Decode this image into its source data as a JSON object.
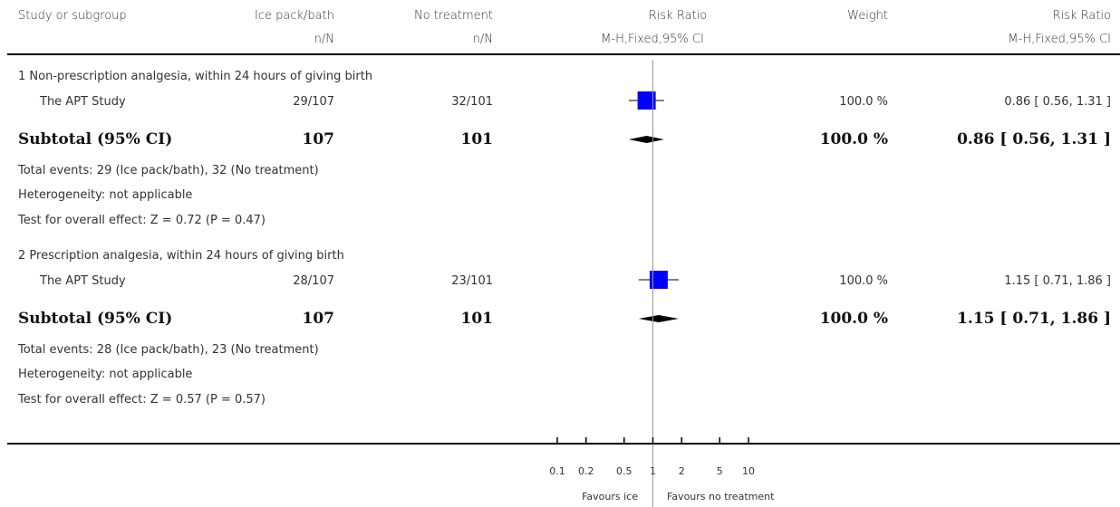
{
  "header": {
    "col_study": "Study or subgroup",
    "col_ice": "Ice pack/bath",
    "col_none": "No treatment",
    "col_rr": "Risk Ratio",
    "col_weight": "Weight",
    "col_rr_right": "Risk Ratio",
    "sub_ice": "n/N",
    "sub_none": "n/N",
    "sub_rr": "M-H,Fixed,95% CI",
    "sub_rr_right": "M-H,Fixed,95% CI"
  },
  "chart_data": {
    "type": "forest",
    "scale": "log",
    "xlim": [
      0.1,
      10
    ],
    "x_ticks": [
      0.1,
      0.2,
      0.5,
      1,
      2,
      5,
      10
    ],
    "tick_labels": [
      "0.1",
      "0.2",
      "0.5",
      "1",
      "2",
      "5",
      "10"
    ],
    "favours_left": "Favours ice",
    "favours_right": "Favours no treatment",
    "marker_color": "#0000ff",
    "groups": [
      {
        "title": "1 Non-prescription analgesia, within 24 hours of giving birth",
        "studies": [
          {
            "name": "The APT Study",
            "ice": "29/107",
            "none": "32/101",
            "rr": 0.86,
            "ci": [
              0.56,
              1.31
            ],
            "weight": "100.0 %",
            "rr_text": "0.86 [ 0.56, 1.31 ]"
          }
        ],
        "subtotal": {
          "label": "Subtotal (95% CI)",
          "ice": "107",
          "none": "101",
          "rr": 0.86,
          "ci": [
            0.56,
            1.31
          ],
          "weight": "100.0 %",
          "rr_text": "0.86 [ 0.56, 1.31 ]"
        },
        "notes": [
          "Total events: 29 (Ice pack/bath), 32 (No treatment)",
          "Heterogeneity: not applicable",
          "Test for overall effect: Z = 0.72 (P = 0.47)"
        ]
      },
      {
        "title": "2 Prescription analgesia, within 24 hours of giving birth",
        "studies": [
          {
            "name": "The APT Study",
            "ice": "28/107",
            "none": "23/101",
            "rr": 1.15,
            "ci": [
              0.71,
              1.86
            ],
            "weight": "100.0 %",
            "rr_text": "1.15 [ 0.71, 1.86 ]"
          }
        ],
        "subtotal": {
          "label": "Subtotal (95% CI)",
          "ice": "107",
          "none": "101",
          "rr": 1.15,
          "ci": [
            0.71,
            1.86
          ],
          "weight": "100.0 %",
          "rr_text": "1.15 [ 0.71, 1.86 ]"
        },
        "notes": [
          "Total events: 28 (Ice pack/bath), 23 (No treatment)",
          "Heterogeneity: not applicable",
          "Test for overall effect: Z = 0.57 (P = 0.57)"
        ]
      }
    ]
  }
}
